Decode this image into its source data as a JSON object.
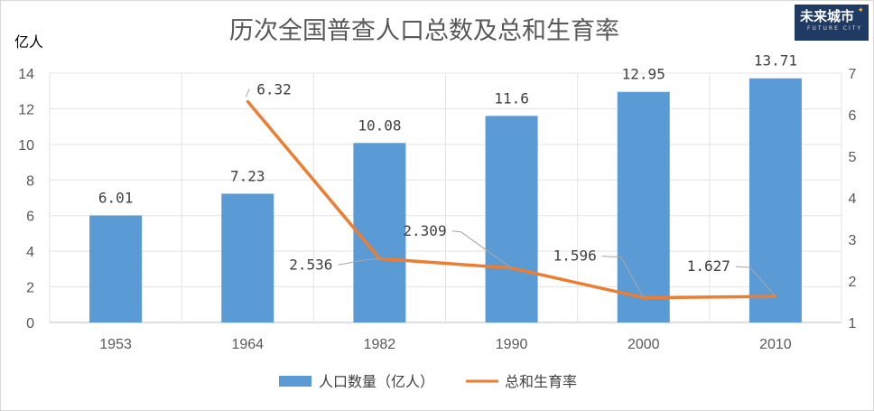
{
  "chart_data": {
    "type": "bar",
    "title": "历次全国普查人口总数及总和生育率",
    "y_unit_label": "亿人",
    "categories": [
      "1953",
      "1964",
      "1982",
      "1990",
      "2000",
      "2010"
    ],
    "series": [
      {
        "name": "人口数量（亿人）",
        "type": "bar",
        "axis": "left",
        "color": "#5b9bd5",
        "values": [
          6.01,
          7.23,
          10.08,
          11.6,
          12.95,
          13.71
        ],
        "labels": [
          "6.01",
          "7.23",
          "10.08",
          "11.6",
          "12.95",
          "13.71"
        ]
      },
      {
        "name": "总和生育率",
        "type": "line",
        "axis": "right",
        "color": "#ed7d31",
        "values": [
          null,
          6.32,
          2.536,
          2.309,
          1.596,
          1.627
        ],
        "labels": [
          null,
          "6.32",
          "2.536",
          "2.309",
          "1.596",
          "1.627"
        ]
      }
    ],
    "y_left": {
      "min": 0,
      "max": 14,
      "ticks": [
        0,
        2,
        4,
        6,
        8,
        10,
        12,
        14
      ]
    },
    "y_right": {
      "min": 1,
      "max": 7,
      "ticks": [
        1,
        2,
        3,
        4,
        5,
        6,
        7
      ]
    },
    "grid": true,
    "legend": "bottom"
  },
  "logo": {
    "text": "未来城市",
    "subtext": "FUTURE CITY",
    "color": "#1f3a63"
  }
}
